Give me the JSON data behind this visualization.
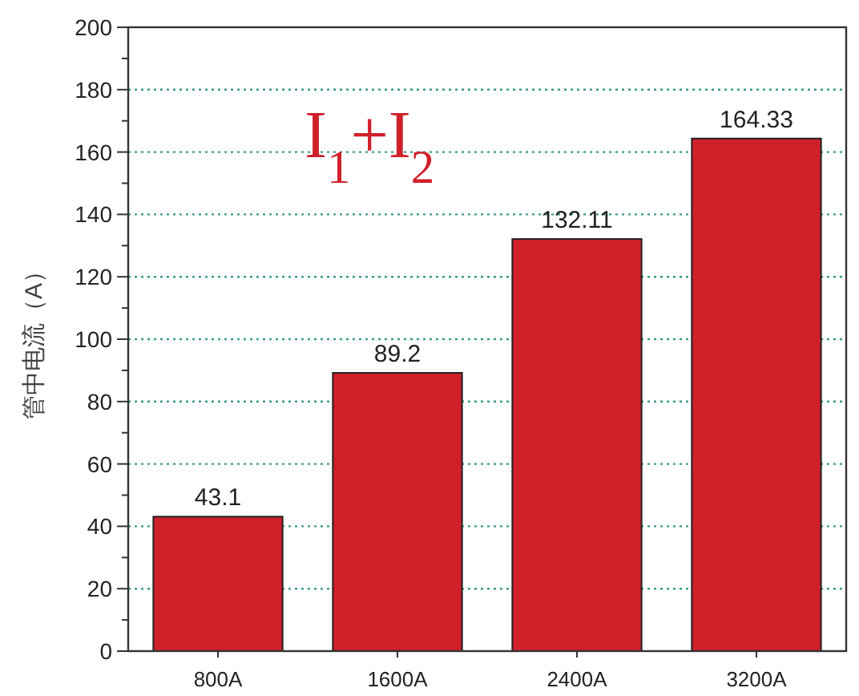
{
  "chart_data": {
    "type": "bar",
    "ylabel": "管中电流（A）",
    "categories": [
      "800A",
      "1600A",
      "2400A",
      "3200A"
    ],
    "values": [
      43.1,
      89.2,
      132.11,
      164.33
    ],
    "color": "#d0202a",
    "ylim": [
      0,
      200
    ],
    "yticks": [
      0,
      {
        "value": 10,
        "label": null
      },
      20,
      {
        "value": 30,
        "label": null
      },
      40,
      {
        "value": 50,
        "label": null
      },
      60,
      {
        "value": 70,
        "label": null
      },
      80,
      {
        "value": 90,
        "label": null
      },
      100,
      {
        "value": 110,
        "label": null
      },
      120,
      {
        "value": 130,
        "label": null
      },
      140,
      {
        "value": 150,
        "label": null
      },
      160,
      {
        "value": 170,
        "label": null
      },
      180,
      {
        "value": 190,
        "label": null
      },
      200
    ],
    "grid": "y",
    "data_labels": true,
    "annotations": [
      "I$_{1}$+I$_{2}$"
    ]
  }
}
